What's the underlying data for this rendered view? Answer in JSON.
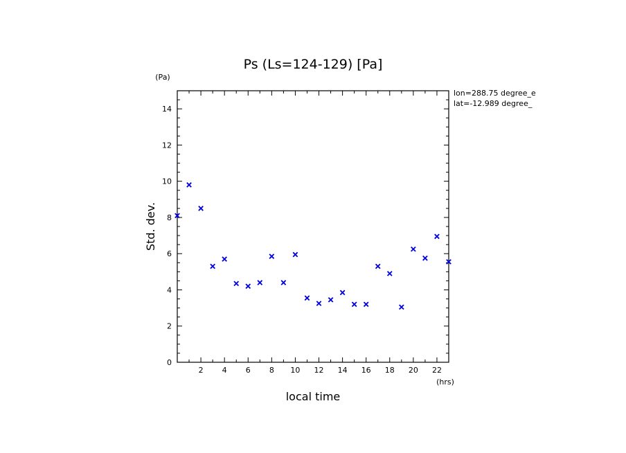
{
  "chart_data": {
    "type": "scatter",
    "title": "Ps (Ls=124-129) [Pa]",
    "xlabel": "local time",
    "ylabel": "Std. dev.",
    "x_unit": "(hrs)",
    "y_unit": "(Pa)",
    "annotations": [
      "lon=288.75 degree_e",
      "lat=-12.989 degree_"
    ],
    "xlim": [
      0,
      23
    ],
    "ylim": [
      0,
      15
    ],
    "x_ticks": [
      2,
      4,
      6,
      8,
      10,
      12,
      14,
      16,
      18,
      20,
      22
    ],
    "y_ticks": [
      0,
      2,
      4,
      6,
      8,
      10,
      12,
      14
    ],
    "grid": false,
    "marker": "x",
    "marker_color": "#0000dd",
    "series": [
      {
        "x": [
          0.0,
          1.0,
          2.0,
          3.0,
          4.0,
          5.0,
          6.0,
          7.0,
          8.0,
          9.0,
          10.0,
          11.0,
          12.0,
          13.0,
          14.0,
          15.0,
          16.0,
          17.0,
          18.0,
          19.0,
          20.0,
          21.0,
          22.0,
          23.0
        ],
        "y": [
          8.1,
          9.8,
          8.5,
          5.3,
          5.7,
          4.35,
          4.2,
          4.4,
          5.85,
          4.4,
          5.95,
          3.55,
          3.25,
          3.45,
          3.85,
          3.2,
          3.2,
          5.3,
          4.9,
          3.05,
          6.25,
          5.75,
          6.95,
          5.55
        ]
      }
    ]
  }
}
